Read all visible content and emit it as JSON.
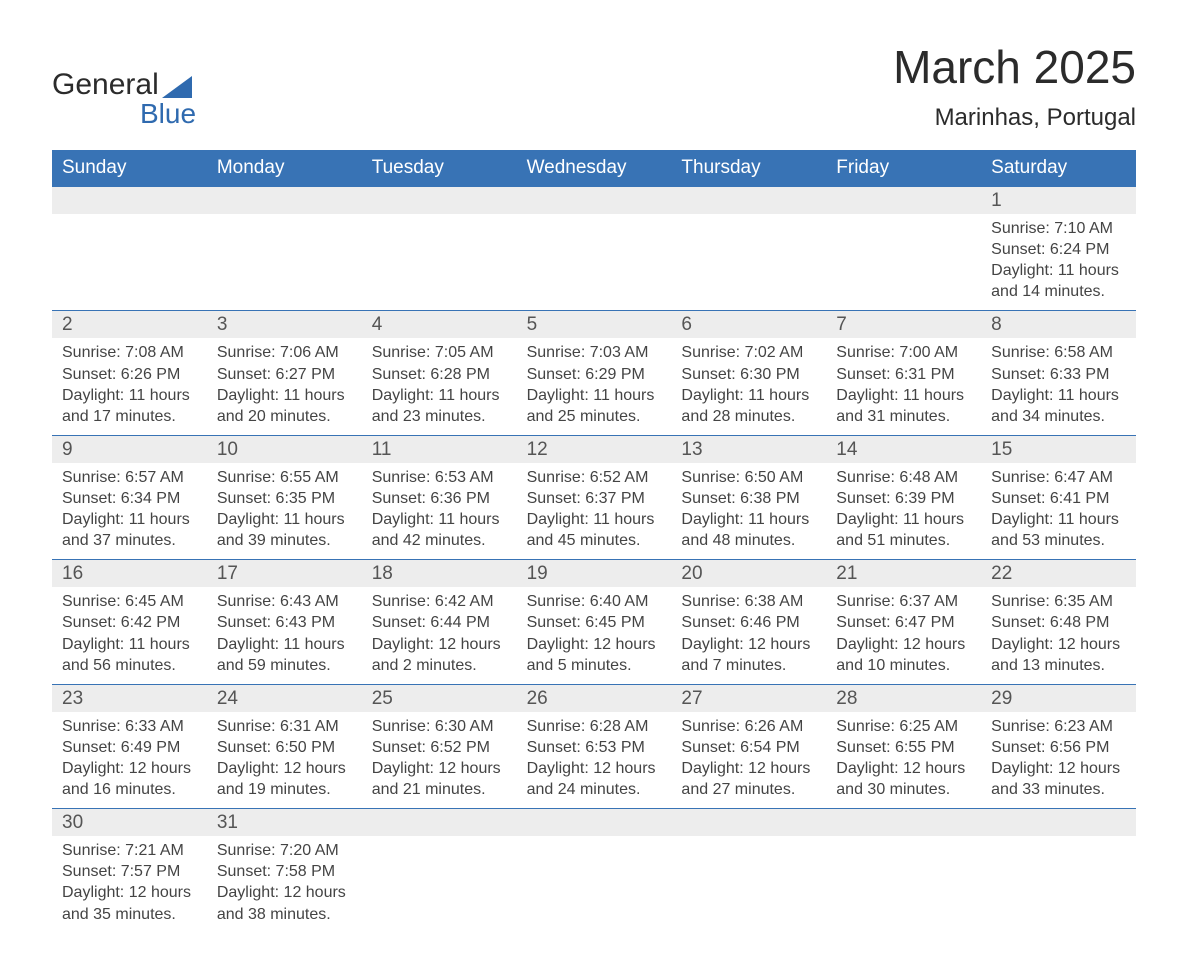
{
  "logo": {
    "line1": "General",
    "line2": "Blue"
  },
  "title": "March 2025",
  "subtitle": "Marinhas, Portugal",
  "header_bg": "#3873b5",
  "header_fg": "#ffffff",
  "strip_bg": "#ededed",
  "row_border": "#3873b5",
  "weekdays": [
    "Sunday",
    "Monday",
    "Tuesday",
    "Wednesday",
    "Thursday",
    "Friday",
    "Saturday"
  ],
  "weeks": [
    [
      null,
      null,
      null,
      null,
      null,
      null,
      {
        "n": "1",
        "sr": "Sunrise: 7:10 AM",
        "ss": "Sunset: 6:24 PM",
        "d1": "Daylight: 11 hours",
        "d2": "and 14 minutes."
      }
    ],
    [
      {
        "n": "2",
        "sr": "Sunrise: 7:08 AM",
        "ss": "Sunset: 6:26 PM",
        "d1": "Daylight: 11 hours",
        "d2": "and 17 minutes."
      },
      {
        "n": "3",
        "sr": "Sunrise: 7:06 AM",
        "ss": "Sunset: 6:27 PM",
        "d1": "Daylight: 11 hours",
        "d2": "and 20 minutes."
      },
      {
        "n": "4",
        "sr": "Sunrise: 7:05 AM",
        "ss": "Sunset: 6:28 PM",
        "d1": "Daylight: 11 hours",
        "d2": "and 23 minutes."
      },
      {
        "n": "5",
        "sr": "Sunrise: 7:03 AM",
        "ss": "Sunset: 6:29 PM",
        "d1": "Daylight: 11 hours",
        "d2": "and 25 minutes."
      },
      {
        "n": "6",
        "sr": "Sunrise: 7:02 AM",
        "ss": "Sunset: 6:30 PM",
        "d1": "Daylight: 11 hours",
        "d2": "and 28 minutes."
      },
      {
        "n": "7",
        "sr": "Sunrise: 7:00 AM",
        "ss": "Sunset: 6:31 PM",
        "d1": "Daylight: 11 hours",
        "d2": "and 31 minutes."
      },
      {
        "n": "8",
        "sr": "Sunrise: 6:58 AM",
        "ss": "Sunset: 6:33 PM",
        "d1": "Daylight: 11 hours",
        "d2": "and 34 minutes."
      }
    ],
    [
      {
        "n": "9",
        "sr": "Sunrise: 6:57 AM",
        "ss": "Sunset: 6:34 PM",
        "d1": "Daylight: 11 hours",
        "d2": "and 37 minutes."
      },
      {
        "n": "10",
        "sr": "Sunrise: 6:55 AM",
        "ss": "Sunset: 6:35 PM",
        "d1": "Daylight: 11 hours",
        "d2": "and 39 minutes."
      },
      {
        "n": "11",
        "sr": "Sunrise: 6:53 AM",
        "ss": "Sunset: 6:36 PM",
        "d1": "Daylight: 11 hours",
        "d2": "and 42 minutes."
      },
      {
        "n": "12",
        "sr": "Sunrise: 6:52 AM",
        "ss": "Sunset: 6:37 PM",
        "d1": "Daylight: 11 hours",
        "d2": "and 45 minutes."
      },
      {
        "n": "13",
        "sr": "Sunrise: 6:50 AM",
        "ss": "Sunset: 6:38 PM",
        "d1": "Daylight: 11 hours",
        "d2": "and 48 minutes."
      },
      {
        "n": "14",
        "sr": "Sunrise: 6:48 AM",
        "ss": "Sunset: 6:39 PM",
        "d1": "Daylight: 11 hours",
        "d2": "and 51 minutes."
      },
      {
        "n": "15",
        "sr": "Sunrise: 6:47 AM",
        "ss": "Sunset: 6:41 PM",
        "d1": "Daylight: 11 hours",
        "d2": "and 53 minutes."
      }
    ],
    [
      {
        "n": "16",
        "sr": "Sunrise: 6:45 AM",
        "ss": "Sunset: 6:42 PM",
        "d1": "Daylight: 11 hours",
        "d2": "and 56 minutes."
      },
      {
        "n": "17",
        "sr": "Sunrise: 6:43 AM",
        "ss": "Sunset: 6:43 PM",
        "d1": "Daylight: 11 hours",
        "d2": "and 59 minutes."
      },
      {
        "n": "18",
        "sr": "Sunrise: 6:42 AM",
        "ss": "Sunset: 6:44 PM",
        "d1": "Daylight: 12 hours",
        "d2": "and 2 minutes."
      },
      {
        "n": "19",
        "sr": "Sunrise: 6:40 AM",
        "ss": "Sunset: 6:45 PM",
        "d1": "Daylight: 12 hours",
        "d2": "and 5 minutes."
      },
      {
        "n": "20",
        "sr": "Sunrise: 6:38 AM",
        "ss": "Sunset: 6:46 PM",
        "d1": "Daylight: 12 hours",
        "d2": "and 7 minutes."
      },
      {
        "n": "21",
        "sr": "Sunrise: 6:37 AM",
        "ss": "Sunset: 6:47 PM",
        "d1": "Daylight: 12 hours",
        "d2": "and 10 minutes."
      },
      {
        "n": "22",
        "sr": "Sunrise: 6:35 AM",
        "ss": "Sunset: 6:48 PM",
        "d1": "Daylight: 12 hours",
        "d2": "and 13 minutes."
      }
    ],
    [
      {
        "n": "23",
        "sr": "Sunrise: 6:33 AM",
        "ss": "Sunset: 6:49 PM",
        "d1": "Daylight: 12 hours",
        "d2": "and 16 minutes."
      },
      {
        "n": "24",
        "sr": "Sunrise: 6:31 AM",
        "ss": "Sunset: 6:50 PM",
        "d1": "Daylight: 12 hours",
        "d2": "and 19 minutes."
      },
      {
        "n": "25",
        "sr": "Sunrise: 6:30 AM",
        "ss": "Sunset: 6:52 PM",
        "d1": "Daylight: 12 hours",
        "d2": "and 21 minutes."
      },
      {
        "n": "26",
        "sr": "Sunrise: 6:28 AM",
        "ss": "Sunset: 6:53 PM",
        "d1": "Daylight: 12 hours",
        "d2": "and 24 minutes."
      },
      {
        "n": "27",
        "sr": "Sunrise: 6:26 AM",
        "ss": "Sunset: 6:54 PM",
        "d1": "Daylight: 12 hours",
        "d2": "and 27 minutes."
      },
      {
        "n": "28",
        "sr": "Sunrise: 6:25 AM",
        "ss": "Sunset: 6:55 PM",
        "d1": "Daylight: 12 hours",
        "d2": "and 30 minutes."
      },
      {
        "n": "29",
        "sr": "Sunrise: 6:23 AM",
        "ss": "Sunset: 6:56 PM",
        "d1": "Daylight: 12 hours",
        "d2": "and 33 minutes."
      }
    ],
    [
      {
        "n": "30",
        "sr": "Sunrise: 7:21 AM",
        "ss": "Sunset: 7:57 PM",
        "d1": "Daylight: 12 hours",
        "d2": "and 35 minutes."
      },
      {
        "n": "31",
        "sr": "Sunrise: 7:20 AM",
        "ss": "Sunset: 7:58 PM",
        "d1": "Daylight: 12 hours",
        "d2": "and 38 minutes."
      },
      null,
      null,
      null,
      null,
      null
    ]
  ]
}
